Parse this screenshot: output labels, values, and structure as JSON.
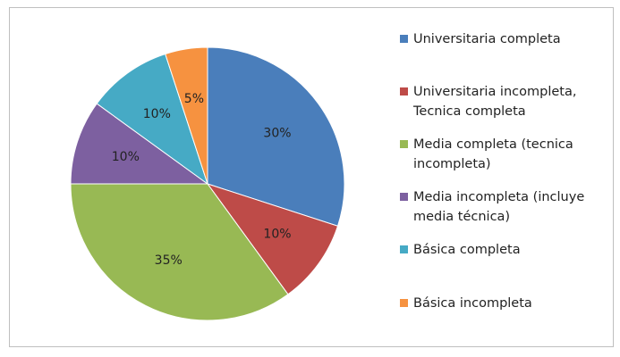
{
  "chart_data": {
    "type": "pie",
    "categories": [
      "Universitaria completa",
      "Universitaria incompleta, Tecnica completa",
      "Media completa (tecnica incompleta)",
      "Media incompleta (incluye media técnica)",
      "Básica completa",
      "Básica incompleta"
    ],
    "values": [
      30,
      10,
      35,
      10,
      10,
      5
    ],
    "value_labels": [
      "30%",
      "10%",
      "35%",
      "10%",
      "10%",
      "5%"
    ],
    "colors": [
      "#4a7ebb",
      "#be4b48",
      "#98b954",
      "#7d60a0",
      "#46aac5",
      "#f69240"
    ],
    "legend": "right"
  }
}
